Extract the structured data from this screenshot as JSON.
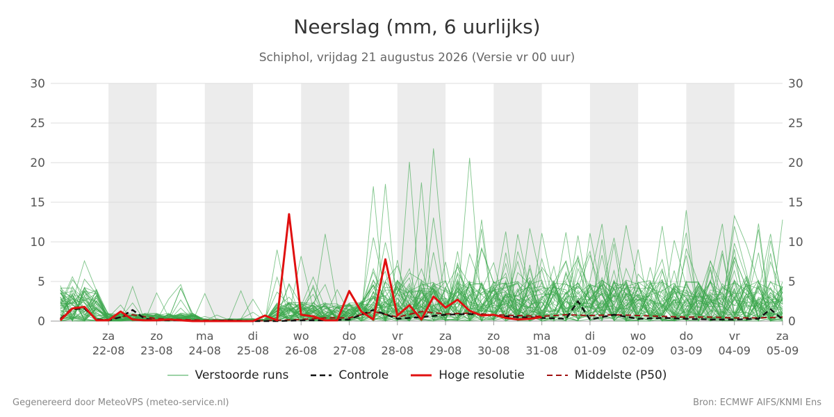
{
  "header": {
    "title": "Neerslag (mm, 6 uurlijks)",
    "subtitle": "Schiphol, vrijdag 21 augustus 2026 (Versie vr 00 uur)"
  },
  "footer": {
    "generated_by": "Gegenereerd door MeteoVPS (meteo-service.nl)",
    "source": "Bron: ECMWF AIFS/KNMI Ens"
  },
  "legend": {
    "items": [
      {
        "label": "Verstoorde runs",
        "color": "#3aa64c",
        "style": "thin"
      },
      {
        "label": "Controle",
        "color": "#111111",
        "style": "dashed"
      },
      {
        "label": "Hoge resolutie",
        "color": "#e01010",
        "style": "solid"
      },
      {
        "label": "Middelste (P50)",
        "color": "#a01010",
        "style": "dashed"
      }
    ]
  },
  "colors": {
    "members": "#3aa64c",
    "control": "#111111",
    "hres": "#e01010",
    "median": "#a01010",
    "weekend_band": "#ececec",
    "grid": "#dddddd"
  },
  "chart_data": {
    "type": "line",
    "title": "Neerslag (mm, 6 uurlijks)",
    "ylim": [
      0,
      30
    ],
    "yticks": [
      0,
      5,
      10,
      15,
      20,
      25,
      30
    ],
    "x_unit": "days since 21-08-2026 00 UTC",
    "xlim": [
      -0.2,
      15
    ],
    "xticks": [
      {
        "x": 1,
        "day": "za",
        "date": "22-08"
      },
      {
        "x": 2,
        "day": "zo",
        "date": "23-08"
      },
      {
        "x": 3,
        "day": "ma",
        "date": "24-08"
      },
      {
        "x": 4,
        "day": "di",
        "date": "25-08"
      },
      {
        "x": 5,
        "day": "wo",
        "date": "26-08"
      },
      {
        "x": 6,
        "day": "do",
        "date": "27-08"
      },
      {
        "x": 7,
        "day": "vr",
        "date": "28-08"
      },
      {
        "x": 8,
        "day": "za",
        "date": "29-08"
      },
      {
        "x": 9,
        "day": "zo",
        "date": "30-08"
      },
      {
        "x": 10,
        "day": "ma",
        "date": "31-08"
      },
      {
        "x": 11,
        "day": "di",
        "date": "01-09"
      },
      {
        "x": 12,
        "day": "wo",
        "date": "02-09"
      },
      {
        "x": 13,
        "day": "do",
        "date": "03-09"
      },
      {
        "x": 14,
        "day": "vr",
        "date": "04-09"
      },
      {
        "x": 15,
        "day": "za",
        "date": "05-09"
      }
    ],
    "shaded_bands": [
      [
        1,
        2
      ],
      [
        3,
        4
      ],
      [
        5,
        6
      ],
      [
        7,
        8
      ],
      [
        9,
        10
      ],
      [
        11,
        12
      ],
      [
        13,
        14
      ]
    ],
    "grid": true,
    "legend_position": "bottom",
    "series": [
      {
        "name": "Hoge resolutie",
        "x": [
          0,
          0.25,
          0.5,
          0.75,
          1,
          1.25,
          1.5,
          1.75,
          2,
          2.25,
          2.5,
          2.75,
          3,
          3.25,
          3.5,
          3.75,
          4,
          4.25,
          4.5,
          4.75,
          5,
          5.25,
          5.5,
          5.75,
          6,
          6.25,
          6.5,
          6.75,
          7,
          7.25,
          7.5,
          7.75,
          8,
          8.25,
          8.5,
          8.75,
          9,
          9.25,
          9.5,
          9.75,
          10
        ],
        "values": [
          0.1,
          1.6,
          1.8,
          0.1,
          0.1,
          1.2,
          0.2,
          0.1,
          0.1,
          0.2,
          0.1,
          0.0,
          0.0,
          0.0,
          0.0,
          0.0,
          0.0,
          0.7,
          0.1,
          13.5,
          0.8,
          0.6,
          0.1,
          0.1,
          3.8,
          1.2,
          0.2,
          7.8,
          0.7,
          2.0,
          0.2,
          3.1,
          1.7,
          2.7,
          1.3,
          0.7,
          0.8,
          0.4,
          0.2,
          0.3,
          0.5
        ]
      },
      {
        "name": "Controle",
        "x": [
          0,
          0.25,
          0.5,
          0.75,
          1,
          1.25,
          1.5,
          1.75,
          2,
          2.5,
          3,
          3.5,
          4,
          4.5,
          5,
          5.5,
          6,
          6.5,
          7,
          7.5,
          8,
          8.5,
          9,
          9.5,
          10,
          10.5,
          10.75,
          11,
          11.5,
          12,
          12.5,
          13,
          13.5,
          14,
          14.5,
          14.75,
          15
        ],
        "values": [
          0.2,
          1.5,
          1.6,
          0.2,
          0.1,
          0.5,
          1.4,
          0.3,
          0.1,
          0.1,
          0.0,
          0.1,
          0.0,
          0.0,
          0.1,
          0.1,
          0.2,
          1.4,
          0.3,
          0.5,
          0.8,
          0.9,
          0.7,
          0.5,
          0.4,
          0.3,
          2.5,
          0.2,
          0.8,
          0.3,
          0.4,
          0.3,
          0.2,
          0.2,
          0.3,
          1.5,
          0.2
        ]
      },
      {
        "name": "Middelste (P50)",
        "x": [
          0,
          0.25,
          0.5,
          0.75,
          1,
          1.5,
          2,
          2.5,
          3,
          3.5,
          4,
          4.5,
          5,
          5.5,
          6,
          6.5,
          7,
          7.5,
          8,
          8.5,
          9,
          9.5,
          10,
          10.5,
          11,
          11.5,
          12,
          12.5,
          13,
          13.5,
          14,
          14.5,
          15
        ],
        "values": [
          0.3,
          1.7,
          1.8,
          0.2,
          0.2,
          0.8,
          0.3,
          0.2,
          0.1,
          0.1,
          0.0,
          0.1,
          0.2,
          0.4,
          0.4,
          1.2,
          0.5,
          1.2,
          0.9,
          1.0,
          0.8,
          0.7,
          0.6,
          0.8,
          0.7,
          0.8,
          0.7,
          0.6,
          0.5,
          0.5,
          0.4,
          0.4,
          0.5
        ]
      }
    ],
    "members": {
      "name": "Verstoorde runs",
      "count": 50,
      "x_step": 0.25,
      "x_start": 0,
      "x_end": 15,
      "notable_peaks": [
        {
          "x": 0.25,
          "value": 5.6
        },
        {
          "x": 0.5,
          "value": 7.6
        },
        {
          "x": 4.5,
          "value": 9.0
        },
        {
          "x": 5.0,
          "value": 8.2
        },
        {
          "x": 5.5,
          "value": 11.0
        },
        {
          "x": 6.5,
          "value": 17.0
        },
        {
          "x": 6.75,
          "value": 17.3
        },
        {
          "x": 7.25,
          "value": 20.1
        },
        {
          "x": 7.5,
          "value": 17.5
        },
        {
          "x": 7.75,
          "value": 21.8
        },
        {
          "x": 8.5,
          "value": 20.6
        },
        {
          "x": 8.75,
          "value": 12.8
        },
        {
          "x": 9.25,
          "value": 11.3
        },
        {
          "x": 9.75,
          "value": 11.7
        },
        {
          "x": 10.0,
          "value": 11.1
        },
        {
          "x": 10.5,
          "value": 11.2
        },
        {
          "x": 11.25,
          "value": 10.3
        },
        {
          "x": 11.75,
          "value": 12.1
        },
        {
          "x": 12.5,
          "value": 12.0
        },
        {
          "x": 13.0,
          "value": 14.0
        },
        {
          "x": 14.0,
          "value": 13.3
        },
        {
          "x": 14.75,
          "value": 11.0
        },
        {
          "x": 15.0,
          "value": 12.8
        }
      ]
    }
  }
}
